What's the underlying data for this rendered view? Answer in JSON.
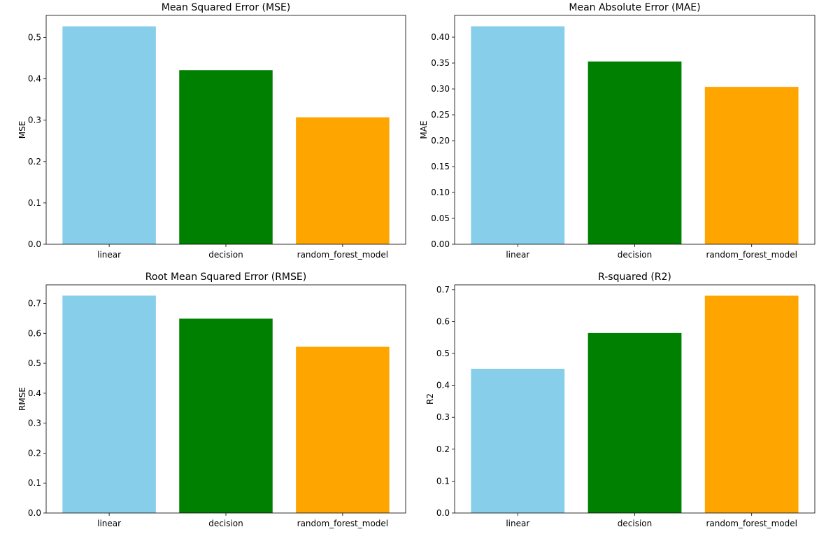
{
  "chart_data": [
    {
      "type": "bar",
      "title": "Mean Squared Error (MSE)",
      "xlabel": "",
      "ylabel": "MSE",
      "categories": [
        "linear",
        "decision",
        "random_forest_model"
      ],
      "values": [
        0.527,
        0.421,
        0.307
      ],
      "colors": [
        "#87ceeb",
        "#008000",
        "#ffa500"
      ],
      "ylim": [
        0,
        0.5534
      ],
      "yticks": [
        0.0,
        0.1,
        0.2,
        0.3,
        0.4,
        0.5
      ],
      "ytick_labels": [
        "0.0",
        "0.1",
        "0.2",
        "0.3",
        "0.4",
        "0.5"
      ],
      "grid": false,
      "legend": "none"
    },
    {
      "type": "bar",
      "title": "Mean Absolute Error (MAE)",
      "xlabel": "",
      "ylabel": "MAE",
      "categories": [
        "linear",
        "decision",
        "random_forest_model"
      ],
      "values": [
        0.421,
        0.353,
        0.304
      ],
      "colors": [
        "#87ceeb",
        "#008000",
        "#ffa500"
      ],
      "ylim": [
        0,
        0.442
      ],
      "yticks": [
        0.0,
        0.05,
        0.1,
        0.15,
        0.2,
        0.25,
        0.3,
        0.35,
        0.4
      ],
      "ytick_labels": [
        "0.00",
        "0.05",
        "0.10",
        "0.15",
        "0.20",
        "0.25",
        "0.30",
        "0.35",
        "0.40"
      ],
      "grid": false,
      "legend": "none"
    },
    {
      "type": "bar",
      "title": "Root Mean Squared Error (RMSE)",
      "xlabel": "",
      "ylabel": "RMSE",
      "categories": [
        "linear",
        "decision",
        "random_forest_model"
      ],
      "values": [
        0.726,
        0.649,
        0.555
      ],
      "colors": [
        "#87ceeb",
        "#008000",
        "#ffa500"
      ],
      "ylim": [
        0,
        0.762
      ],
      "yticks": [
        0.0,
        0.1,
        0.2,
        0.3,
        0.4,
        0.5,
        0.6,
        0.7
      ],
      "ytick_labels": [
        "0.0",
        "0.1",
        "0.2",
        "0.3",
        "0.4",
        "0.5",
        "0.6",
        "0.7"
      ],
      "grid": false,
      "legend": "none"
    },
    {
      "type": "bar",
      "title": "R-squared (R2)",
      "xlabel": "",
      "ylabel": "R2",
      "categories": [
        "linear",
        "decision",
        "random_forest_model"
      ],
      "values": [
        0.452,
        0.564,
        0.681
      ],
      "colors": [
        "#87ceeb",
        "#008000",
        "#ffa500"
      ],
      "ylim": [
        0,
        0.715
      ],
      "yticks": [
        0.0,
        0.1,
        0.2,
        0.3,
        0.4,
        0.5,
        0.6,
        0.7
      ],
      "ytick_labels": [
        "0.0",
        "0.1",
        "0.2",
        "0.3",
        "0.4",
        "0.5",
        "0.6",
        "0.7"
      ],
      "grid": false,
      "legend": "none"
    }
  ]
}
